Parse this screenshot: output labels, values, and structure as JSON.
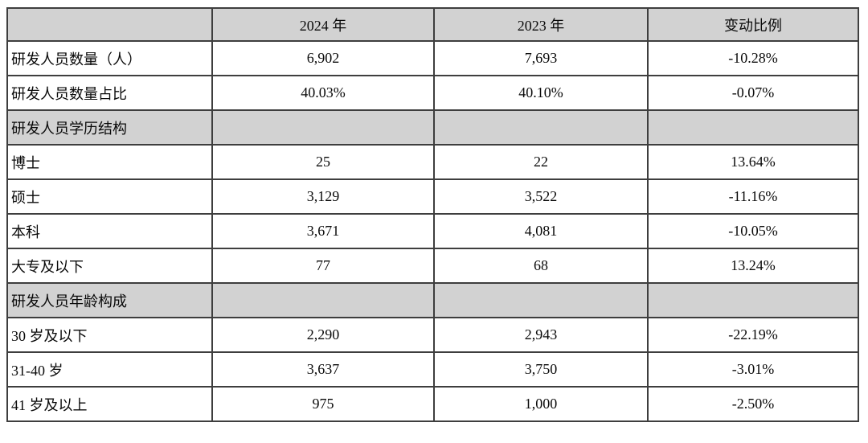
{
  "table": {
    "columns": [
      "",
      "2024 年",
      "2023 年",
      "变动比例"
    ],
    "rows": [
      {
        "type": "data",
        "label": "研发人员数量（人）",
        "v2024": "6,902",
        "v2023": "7,693",
        "change": "-10.28%"
      },
      {
        "type": "data",
        "label": "研发人员数量占比",
        "v2024": "40.03%",
        "v2023": "40.10%",
        "change": "-0.07%"
      },
      {
        "type": "section",
        "label": "研发人员学历结构",
        "v2024": "",
        "v2023": "",
        "change": ""
      },
      {
        "type": "data",
        "label": "博士",
        "v2024": "25",
        "v2023": "22",
        "change": "13.64%"
      },
      {
        "type": "data",
        "label": "硕士",
        "v2024": "3,129",
        "v2023": "3,522",
        "change": "-11.16%"
      },
      {
        "type": "data",
        "label": "本科",
        "v2024": "3,671",
        "v2023": "4,081",
        "change": "-10.05%"
      },
      {
        "type": "data",
        "label": "大专及以下",
        "v2024": "77",
        "v2023": "68",
        "change": "13.24%"
      },
      {
        "type": "section",
        "label": "研发人员年龄构成",
        "v2024": "",
        "v2023": "",
        "change": ""
      },
      {
        "type": "data",
        "label": "30 岁及以下",
        "v2024": "2,290",
        "v2023": "2,943",
        "change": "-22.19%"
      },
      {
        "type": "data",
        "label": "31-40 岁",
        "v2024": "3,637",
        "v2023": "3,750",
        "change": "-3.01%"
      },
      {
        "type": "data",
        "label": "41 岁及以上",
        "v2024": "975",
        "v2023": "1,000",
        "change": "-2.50%"
      }
    ],
    "colors": {
      "header_bg": "#d2d2d2",
      "section_bg": "#d2d2d2",
      "border": "#3e3e3e",
      "text": "#0a0a0a",
      "page_bg": "#ffffff"
    }
  }
}
